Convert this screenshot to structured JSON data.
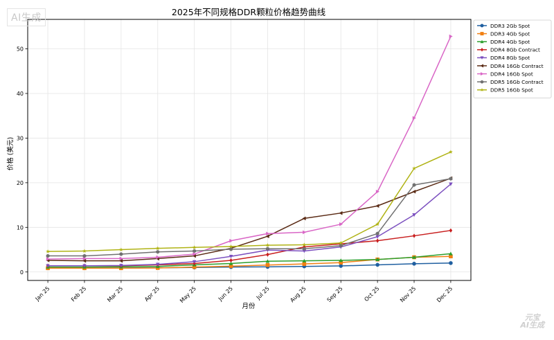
{
  "chart_data": {
    "type": "line",
    "title": "2025年不同规格DDR颗粒价格趋势曲线",
    "xlabel": "月份",
    "ylabel": "价格 (美元)",
    "categories": [
      "Jan 25",
      "Feb 25",
      "Mar 25",
      "Apr 25",
      "May 25",
      "Jun 25",
      "Jul 25",
      "Aug 25",
      "Sep 25",
      "Oct 25",
      "Nov 25",
      "Dec 25"
    ],
    "ylim": [
      -1.9,
      56.6
    ],
    "yticks": [
      0,
      10,
      20,
      30,
      40,
      50
    ],
    "grid": true,
    "legend_position": "outside-top-right",
    "series": [
      {
        "name": "DDR3 2Gb Spot",
        "color": "#1f5fa0",
        "marker": "circle",
        "values": [
          0.9,
          0.9,
          0.9,
          0.95,
          1.0,
          1.1,
          1.15,
          1.25,
          1.35,
          1.6,
          1.85,
          2.0
        ]
      },
      {
        "name": "DDR3 4Gb Spot",
        "color": "#f07f12",
        "marker": "square",
        "values": [
          0.85,
          0.85,
          0.85,
          0.9,
          1.1,
          1.3,
          1.55,
          1.8,
          2.1,
          2.8,
          3.3,
          3.5
        ]
      },
      {
        "name": "DDR4 4Gb Spot",
        "color": "#2b9e2b",
        "marker": "triangle-up",
        "values": [
          1.1,
          1.1,
          1.15,
          1.25,
          1.6,
          1.9,
          2.4,
          2.5,
          2.6,
          2.8,
          3.3,
          4.1
        ]
      },
      {
        "name": "DDR4 8Gb Contract",
        "color": "#c81e1e",
        "marker": "diamond",
        "values": [
          1.4,
          1.4,
          1.4,
          1.6,
          1.9,
          2.6,
          3.9,
          5.6,
          6.3,
          7.0,
          8.1,
          9.3
        ]
      },
      {
        "name": "DDR4 8Gb Spot",
        "color": "#7b4fbf",
        "marker": "triangle-down",
        "values": [
          1.4,
          1.4,
          1.45,
          1.7,
          2.3,
          3.5,
          4.9,
          4.7,
          5.6,
          7.9,
          12.8,
          19.7
        ]
      },
      {
        "name": "DDR4 16Gb Contract",
        "color": "#5a2a14",
        "marker": "triangle-left",
        "values": [
          2.6,
          2.5,
          2.5,
          3.0,
          3.6,
          5.3,
          8.0,
          12.0,
          13.2,
          14.8,
          18.0,
          21.0
        ]
      },
      {
        "name": "DDR4 16Gb Spot",
        "color": "#d966c6",
        "marker": "triangle-right",
        "values": [
          2.9,
          3.0,
          3.0,
          3.3,
          4.0,
          7.0,
          8.6,
          8.9,
          10.7,
          18.0,
          34.5,
          52.8
        ]
      },
      {
        "name": "DDR5 16Gb Contract",
        "color": "#707070",
        "marker": "hexagon",
        "values": [
          3.6,
          3.6,
          4.0,
          4.5,
          4.7,
          5.1,
          5.2,
          5.2,
          5.9,
          8.6,
          19.5,
          20.9
        ]
      },
      {
        "name": "DDR5 16Gb Spot",
        "color": "#b0b315",
        "marker": "star",
        "values": [
          4.6,
          4.7,
          5.0,
          5.3,
          5.5,
          5.7,
          6.0,
          6.1,
          6.5,
          10.7,
          23.2,
          26.9
        ]
      }
    ]
  },
  "watermark_top": "AI生成",
  "watermark_bottom_line1": "元宝",
  "watermark_bottom_line2": "AI生成"
}
